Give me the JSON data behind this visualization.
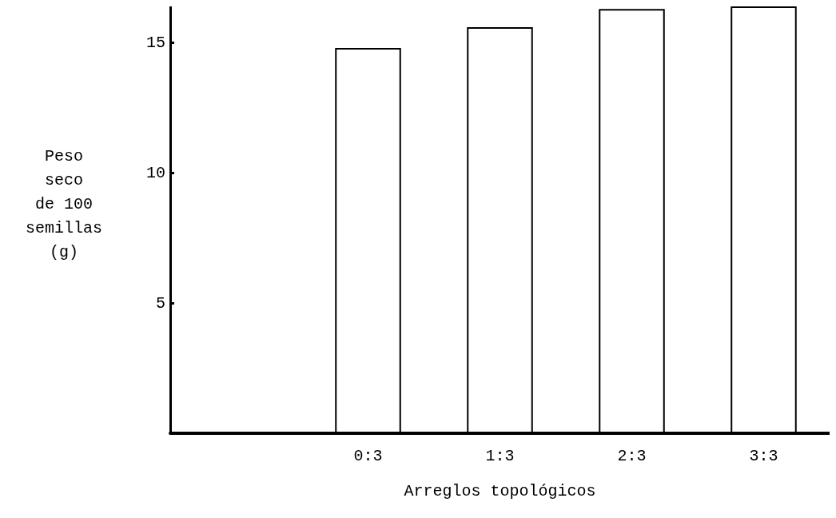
{
  "chart_data": {
    "type": "bar",
    "xlabel": "Arreglos topológicos",
    "ylabel": "Peso\nseco\nde 100\nsemillas\n(g)",
    "categories": [
      null,
      "0:3",
      "1:3",
      "2:3",
      "3:3"
    ],
    "values": [
      null,
      14.8,
      15.6,
      16.3,
      16.4
    ],
    "color": "#ffffff",
    "ylim": [
      0,
      16.4
    ],
    "yticks": [
      5,
      10,
      15
    ],
    "grid": false
  }
}
